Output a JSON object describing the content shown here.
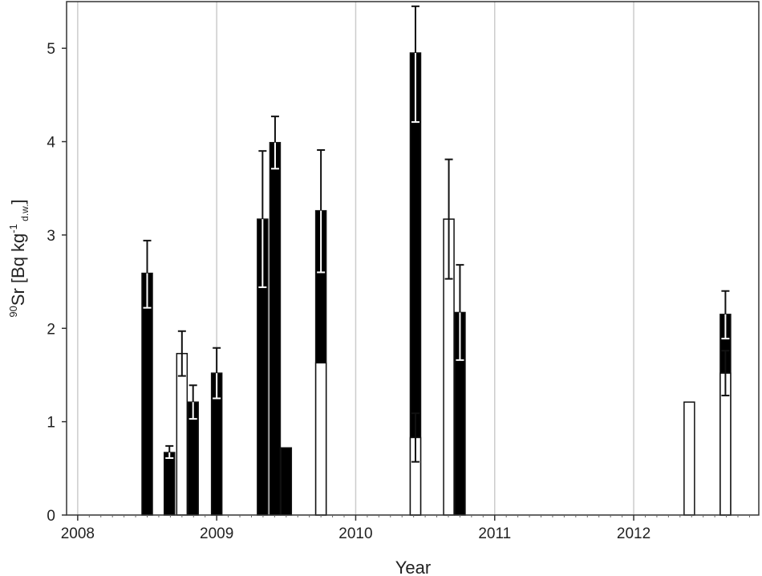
{
  "chart_data": {
    "type": "bar",
    "xlabel": "Year",
    "ylabel": {
      "sup": "90",
      "main": "Sr [Bq kg",
      "exp": "-1",
      "sub": " d.w.",
      "close": "]"
    },
    "xlim": [
      2007.92,
      2012.9
    ],
    "ylim": [
      0,
      5.5
    ],
    "x_ticks": [
      2008,
      2009,
      2010,
      2011,
      2012
    ],
    "y_ticks": [
      0,
      1,
      2,
      3,
      4,
      5
    ],
    "grid": "vertical at year ticks",
    "legend": "none",
    "colors": {
      "filled": "#000000",
      "open": "#ffffff",
      "grid": "#cccccc"
    },
    "series": [
      {
        "style": "filled",
        "points": [
          {
            "x": 2008.5,
            "y": 2.59,
            "err_low": 2.22,
            "err_high": 2.94
          },
          {
            "x": 2008.66,
            "y": 0.67,
            "err_low": 0.61,
            "err_high": 0.74
          },
          {
            "x": 2008.83,
            "y": 1.21,
            "err_low": 1.03,
            "err_high": 1.39
          },
          {
            "x": 2009.0,
            "y": 1.52,
            "err_low": 1.25,
            "err_high": 1.79
          },
          {
            "x": 2009.33,
            "y": 3.17,
            "err_low": 2.44,
            "err_high": 3.9
          },
          {
            "x": 2009.42,
            "y": 3.99,
            "err_low": 3.71,
            "err_high": 4.27
          },
          {
            "x": 2009.5,
            "y": 0.72
          },
          {
            "x": 2009.75,
            "y": 3.26,
            "err_low": 2.6,
            "err_high": 3.91
          },
          {
            "x": 2010.43,
            "y": 4.95,
            "err_low": 4.21,
            "err_high": 5.45
          },
          {
            "x": 2010.75,
            "y": 2.17,
            "err_low": 1.66,
            "err_high": 2.68
          },
          {
            "x": 2012.66,
            "y": 2.15,
            "err_low": 1.89,
            "err_high": 2.4
          }
        ]
      },
      {
        "style": "open",
        "points": [
          {
            "x": 2008.75,
            "y": 1.73,
            "err_low": 1.49,
            "err_high": 1.97
          },
          {
            "x": 2009.75,
            "y": 1.63
          },
          {
            "x": 2010.43,
            "y": 0.83,
            "err_low": 0.57,
            "err_high": 1.09
          },
          {
            "x": 2010.67,
            "y": 3.17,
            "err_low": 2.53,
            "err_high": 3.81
          },
          {
            "x": 2012.4,
            "y": 1.21
          },
          {
            "x": 2012.66,
            "y": 1.52,
            "err_low": 1.28,
            "err_high": 1.76
          }
        ]
      }
    ]
  }
}
